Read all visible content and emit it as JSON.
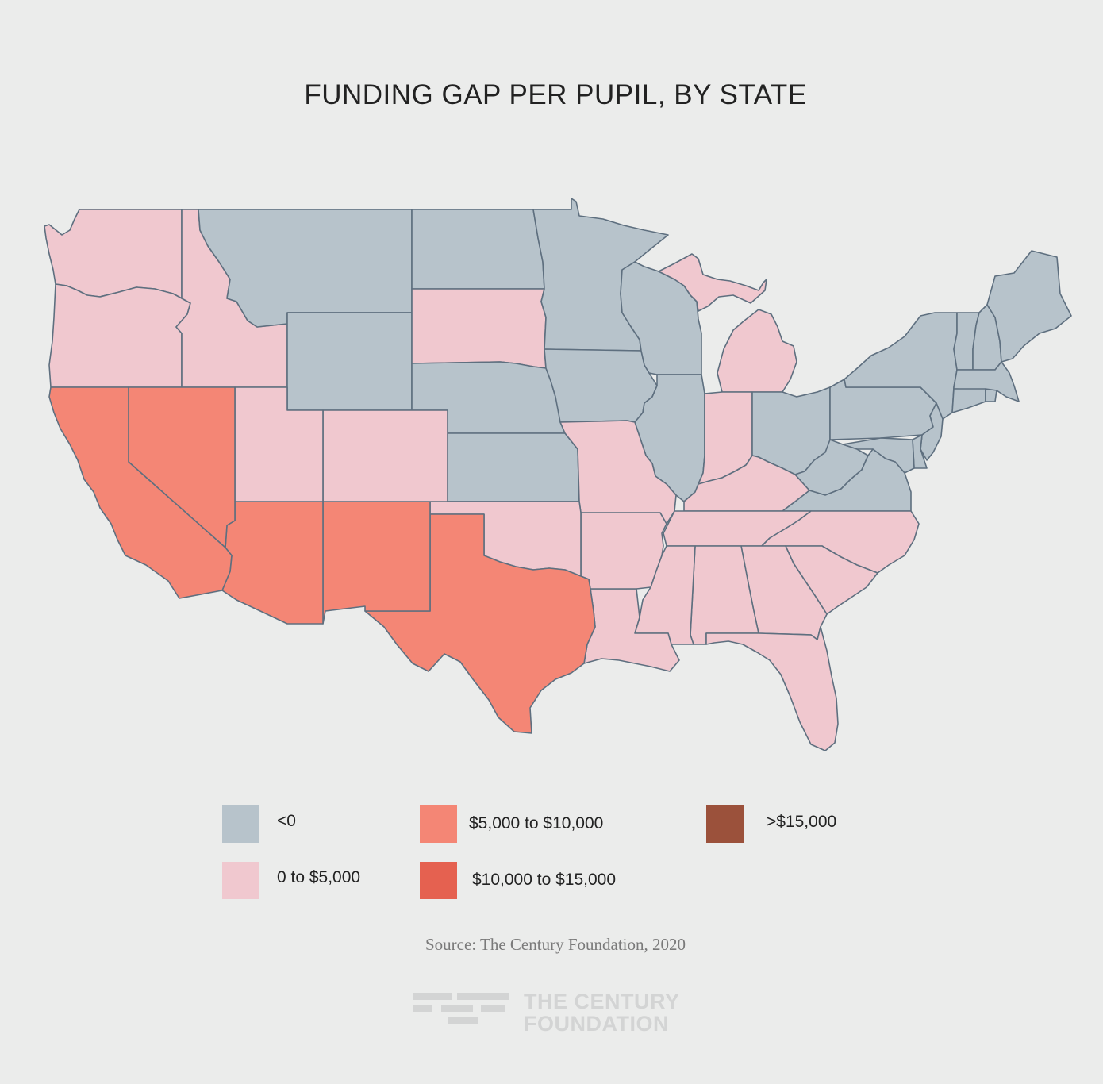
{
  "title": "FUNDING GAP PER PUPIL, BY STATE",
  "legend": [
    {
      "label": "<0",
      "color": "#b7c3cb"
    },
    {
      "label": "0 to $5,000",
      "color": "#f0c8cf"
    },
    {
      "label": "$5,000 to $10,000",
      "color": "#f48675"
    },
    {
      "label": "$10,000 to $15,000",
      "color": "#e56150"
    },
    {
      "label": ">$15,000",
      "color": "#9b513b"
    }
  ],
  "states": {
    "washington": "0 to $5,000",
    "oregon": "0 to $5,000",
    "idaho": "0 to $5,000",
    "montana": "<0",
    "wyoming": "<0",
    "north_dakota": "<0",
    "south_dakota": "0 to $5,000",
    "nebraska": "<0",
    "kansas": "<0",
    "minnesota": "<0",
    "iowa": "<0",
    "wisconsin": "<0",
    "illinois": "<0",
    "michigan": "0 to $5,000",
    "indiana": "0 to $5,000",
    "ohio": "<0",
    "california": "$5,000 to $10,000",
    "nevada": "$5,000 to $10,000",
    "utah": "0 to $5,000",
    "colorado": "0 to $5,000",
    "arizona": "$5,000 to $10,000",
    "new_mexico": "$5,000 to $10,000",
    "texas": "$5,000 to $10,000",
    "oklahoma": "0 to $5,000",
    "missouri": "0 to $5,000",
    "arkansas": "0 to $5,000",
    "louisiana": "0 to $5,000",
    "mississippi": "0 to $5,000",
    "alabama": "0 to $5,000",
    "georgia": "0 to $5,000",
    "florida": "0 to $5,000",
    "south_carolina": "0 to $5,000",
    "north_carolina": "0 to $5,000",
    "tennessee": "0 to $5,000",
    "kentucky": "0 to $5,000",
    "virginia": "<0",
    "west_virginia": "<0",
    "maryland": "<0",
    "delaware": "<0",
    "new_jersey": "<0",
    "pennsylvania": "<0",
    "new_york": "<0",
    "connecticut": "<0",
    "rhode_island": "<0",
    "massachusetts": "<0",
    "vermont": "<0",
    "new_hampshire": "<0",
    "maine": "<0"
  },
  "source": "Source: The Century Foundation, 2020",
  "logo": {
    "line1": "THE CENTURY",
    "line2": "FOUNDATION"
  },
  "colors": {
    "background": "#ebeceb",
    "border": "#5e6f7f"
  }
}
